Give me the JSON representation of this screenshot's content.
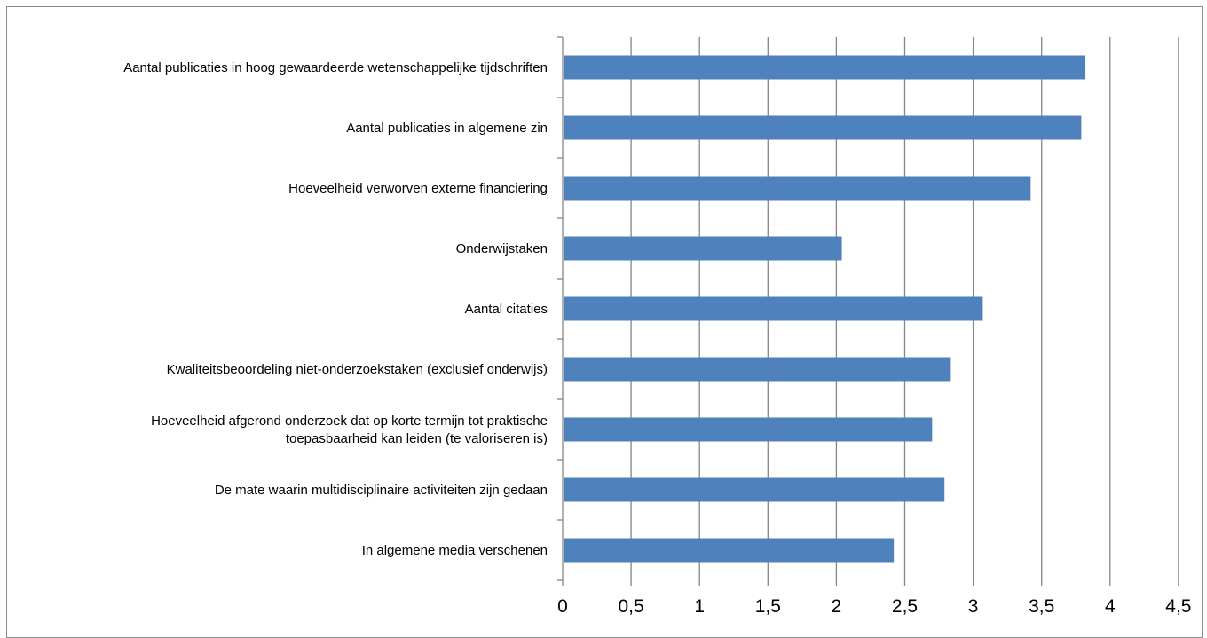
{
  "chart_data": {
    "type": "bar",
    "orientation": "horizontal",
    "title": "",
    "xlabel": "",
    "ylabel": "",
    "xlim": [
      0,
      4.5
    ],
    "x_ticks": [
      "0",
      "0,5",
      "1",
      "1,5",
      "2",
      "2,5",
      "3",
      "3,5",
      "4",
      "4,5"
    ],
    "grid": true,
    "legend": "none",
    "bar_color": "#4f81bd",
    "categories": [
      [
        "Aantal publicaties in hoog gewaardeerde wetenschappelijke tijdschriften"
      ],
      [
        "Aantal publicaties in algemene zin"
      ],
      [
        "Hoeveelheid verworven externe financiering"
      ],
      [
        "Onderwijstaken"
      ],
      [
        "Aantal citaties"
      ],
      [
        "Kwaliteitsbeoordeling niet-onderzoekstaken (exclusief onderwijs)"
      ],
      [
        "Hoeveelheid afgerond onderzoek dat op korte termijn tot praktische",
        "toepasbaarheid kan leiden (te valoriseren is)"
      ],
      [
        "De mate waarin multidisciplinaire activiteiten zijn gedaan"
      ],
      [
        "In algemene media verschenen"
      ]
    ],
    "values": [
      3.82,
      3.79,
      3.42,
      2.04,
      3.07,
      2.83,
      2.7,
      2.79,
      2.42
    ]
  }
}
